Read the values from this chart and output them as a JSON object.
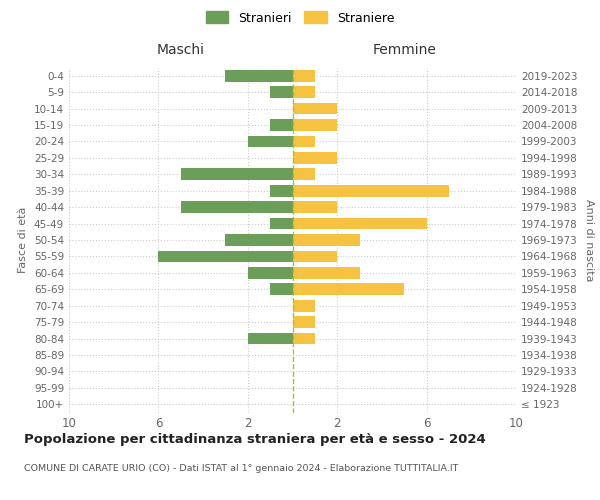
{
  "age_groups": [
    "100+",
    "95-99",
    "90-94",
    "85-89",
    "80-84",
    "75-79",
    "70-74",
    "65-69",
    "60-64",
    "55-59",
    "50-54",
    "45-49",
    "40-44",
    "35-39",
    "30-34",
    "25-29",
    "20-24",
    "15-19",
    "10-14",
    "5-9",
    "0-4"
  ],
  "birth_years": [
    "≤ 1923",
    "1924-1928",
    "1929-1933",
    "1934-1938",
    "1939-1943",
    "1944-1948",
    "1949-1953",
    "1954-1958",
    "1959-1963",
    "1964-1968",
    "1969-1973",
    "1974-1978",
    "1979-1983",
    "1984-1988",
    "1989-1993",
    "1994-1998",
    "1999-2003",
    "2004-2008",
    "2009-2013",
    "2014-2018",
    "2019-2023"
  ],
  "males": [
    0,
    0,
    0,
    0,
    2,
    0,
    0,
    1,
    2,
    6,
    3,
    1,
    5,
    1,
    5,
    0,
    2,
    1,
    0,
    1,
    3
  ],
  "females": [
    0,
    0,
    0,
    0,
    1,
    1,
    1,
    5,
    3,
    2,
    3,
    6,
    2,
    7,
    1,
    2,
    1,
    2,
    2,
    1,
    1
  ],
  "male_color": "#6b9e58",
  "female_color": "#f5c242",
  "male_label": "Stranieri",
  "female_label": "Straniere",
  "title": "Popolazione per cittadinanza straniera per età e sesso - 2024",
  "subtitle": "COMUNE DI CARATE URIO (CO) - Dati ISTAT al 1° gennaio 2024 - Elaborazione TUTTITALIA.IT",
  "xlabel_left": "Maschi",
  "xlabel_right": "Femmine",
  "ylabel_left": "Fasce di età",
  "ylabel_right": "Anni di nascita",
  "xlim": 10,
  "background_color": "#ffffff",
  "grid_color": "#cccccc",
  "dashed_line_color": "#b8b830",
  "xtick_positions": [
    -10,
    -6,
    -2,
    2,
    6,
    10
  ],
  "xtick_labels": [
    "10",
    "6",
    "2",
    "2",
    "6",
    "10"
  ]
}
